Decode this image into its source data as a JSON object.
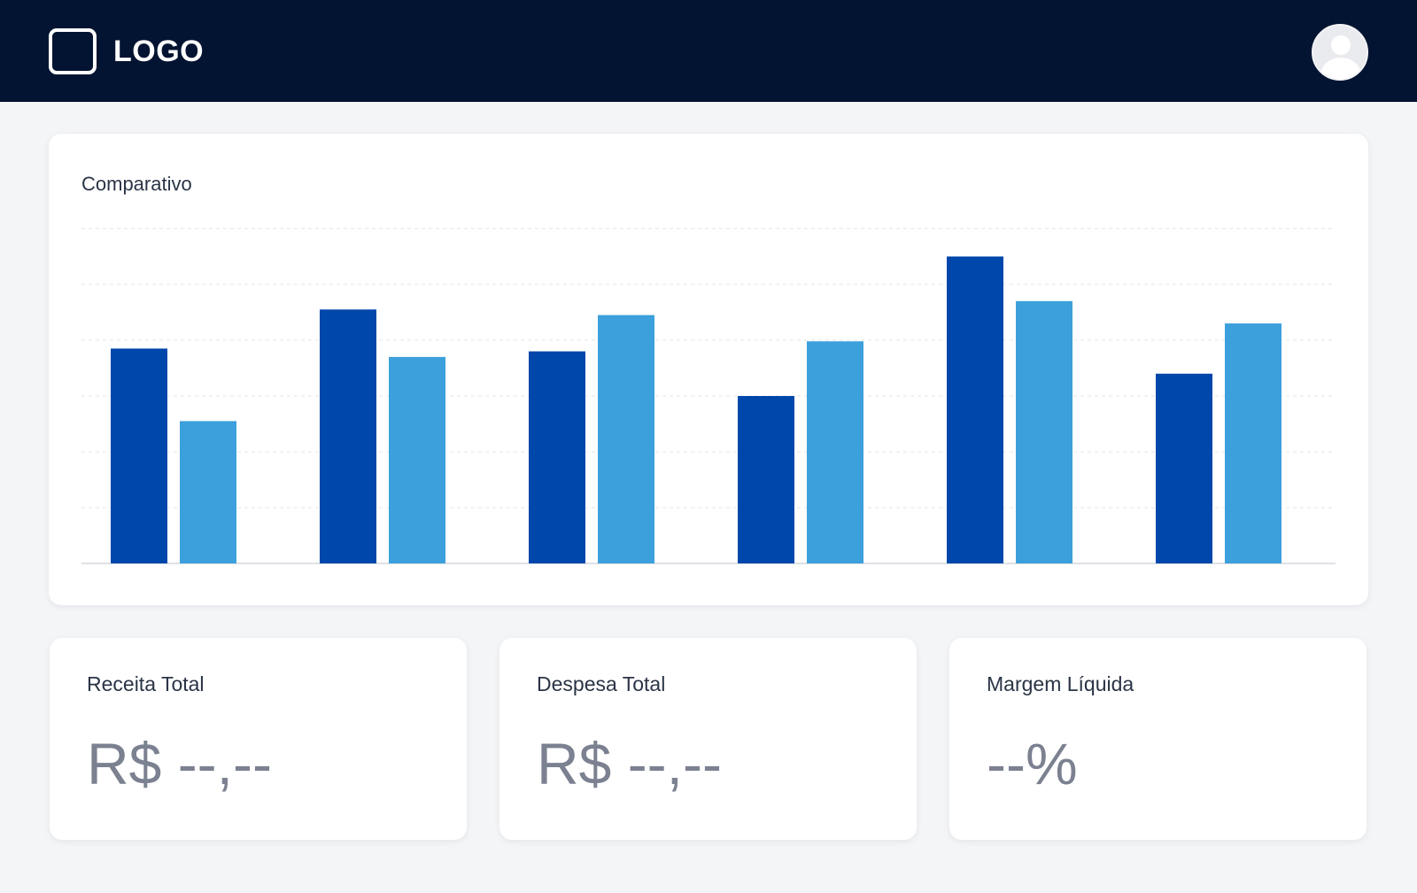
{
  "header": {
    "logo_label": "LOGO",
    "logo_icon": "square-outline-icon",
    "avatar_icon": "user-avatar-icon"
  },
  "chart": {
    "title": "Comparativo"
  },
  "chart_data": {
    "type": "bar",
    "title": "Comparativo",
    "categories": [
      "",
      "",
      "",
      "",
      "",
      ""
    ],
    "series": [
      {
        "values": [
          3.85,
          4.55,
          3.8,
          3.0,
          5.5,
          3.4
        ],
        "color": "#0047ab"
      },
      {
        "values": [
          2.55,
          3.7,
          4.45,
          3.98,
          4.7,
          4.3
        ],
        "color": "#3ca0dc"
      }
    ],
    "ylim": [
      0,
      6
    ],
    "gridlines": 6,
    "grid": true,
    "legend": "none"
  },
  "stats": [
    {
      "label": "Receita Total",
      "value": "R$ --,--"
    },
    {
      "label": "Despesa Total",
      "value": "R$ --,--"
    },
    {
      "label": "Margem Líquida",
      "value": "--%"
    }
  ]
}
